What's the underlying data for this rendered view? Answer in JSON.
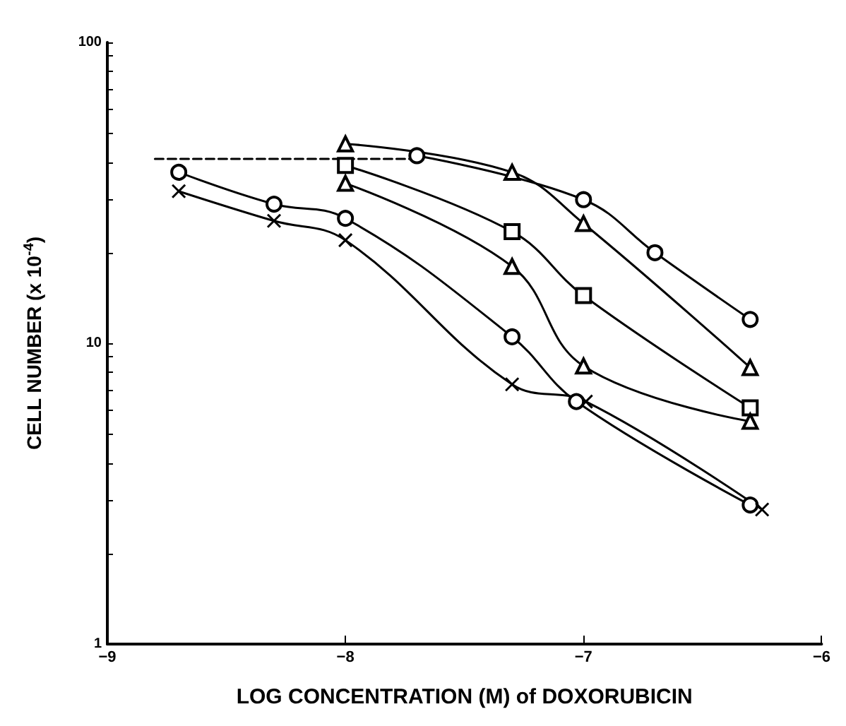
{
  "chart_data": {
    "type": "line",
    "xlabel": "LOG CONCENTRATION (M) of DOXORUBICIN",
    "ylabel": "CELL NUMBER (x 10$^{-4}$)",
    "log": "y",
    "xlim": [
      -9,
      -6
    ],
    "xticks": [
      -9,
      -8,
      -7,
      -6
    ],
    "ylim": [
      1,
      100
    ],
    "yticks": [
      1,
      {
        "value": 2,
        "label": null
      },
      {
        "value": 3,
        "label": null
      },
      {
        "value": 4,
        "label": null
      },
      {
        "value": 5,
        "label": null
      },
      {
        "value": 6,
        "label": null
      },
      {
        "value": 7,
        "label": null
      },
      {
        "value": 8,
        "label": null
      },
      {
        "value": 9,
        "label": null
      },
      10,
      {
        "value": 20,
        "label": null
      },
      {
        "value": 30,
        "label": null
      },
      {
        "value": 40,
        "label": null
      },
      {
        "value": 50,
        "label": null
      },
      {
        "value": 60,
        "label": null
      },
      {
        "value": 70,
        "label": null
      },
      {
        "value": 80,
        "label": null
      },
      {
        "value": 90,
        "label": null
      },
      100
    ],
    "grid": false,
    "series": [
      {
        "color": "#000000",
        "marker": "none",
        "line_style": "dashed",
        "x": [
          -8.8,
          -7.7
        ],
        "values": [
          41,
          41
        ]
      },
      {
        "color": "#000000",
        "marker": "circle",
        "x": [
          -7.7,
          -7.0,
          -6.7,
          -6.3
        ],
        "values": [
          42,
          30,
          20,
          12
        ]
      },
      {
        "color": "#000000",
        "marker": "triangle",
        "x": [
          -8.0,
          -7.3,
          -7.0,
          -6.3
        ],
        "values": [
          46,
          37,
          25,
          8.3
        ]
      },
      {
        "color": "#000000",
        "marker": "square",
        "x": [
          -8.0,
          -7.3,
          -7.0,
          -6.3
        ],
        "values": [
          39,
          23.5,
          14.4,
          6.1
        ]
      },
      {
        "color": "#000000",
        "marker": "triangle",
        "x": [
          -8.0,
          -7.3,
          -7.0,
          -6.3
        ],
        "values": [
          34,
          18,
          8.4,
          5.5
        ]
      },
      {
        "color": "#000000",
        "marker": "circle",
        "x": [
          -8.7,
          -8.3,
          -8.0,
          -7.3,
          -7.03,
          -6.3
        ],
        "values": [
          37,
          29,
          26,
          10.5,
          6.4,
          2.9
        ]
      },
      {
        "color": "#000000",
        "marker": "cross",
        "x": [
          -8.7,
          -8.3,
          -8.0,
          -7.3,
          -6.99,
          -6.25
        ],
        "values": [
          32,
          25.5,
          22,
          7.3,
          6.4,
          2.8
        ]
      }
    ]
  }
}
